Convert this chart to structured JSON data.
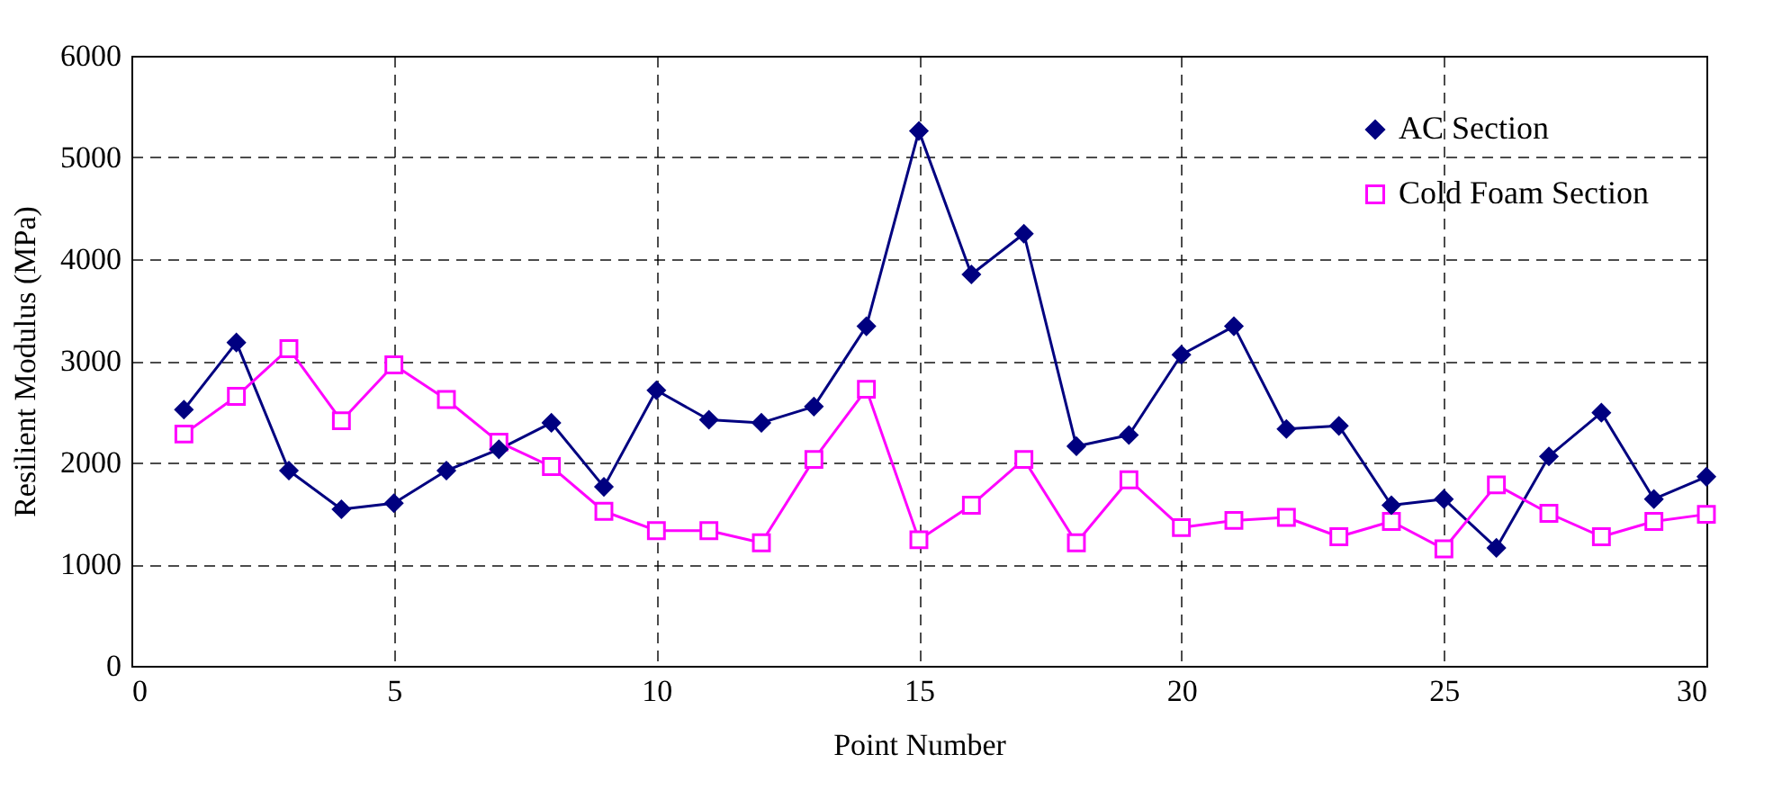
{
  "chart_data": {
    "type": "line",
    "xlabel": "Point Number",
    "ylabel": "Resilient Modulus (MPa)",
    "x": [
      1,
      2,
      3,
      4,
      5,
      6,
      7,
      8,
      9,
      10,
      11,
      12,
      13,
      14,
      15,
      16,
      17,
      18,
      19,
      20,
      21,
      22,
      23,
      24,
      25,
      26,
      27,
      28,
      29,
      30
    ],
    "series": [
      {
        "name": "AC Section",
        "color": "#000080",
        "marker": "diamond",
        "values": [
          2520,
          3180,
          1920,
          1540,
          1600,
          1920,
          2130,
          2390,
          1760,
          2710,
          2420,
          2390,
          2550,
          3340,
          5260,
          3850,
          4250,
          2160,
          2270,
          3060,
          3340,
          2330,
          2360,
          1580,
          1640,
          1160,
          2060,
          2490,
          1640,
          1860
        ]
      },
      {
        "name": "Cold Foam Section",
        "color": "#ff00ff",
        "marker": "square",
        "values": [
          2280,
          2650,
          3120,
          2410,
          2960,
          2620,
          2200,
          1960,
          1520,
          1330,
          1330,
          1210,
          2030,
          2720,
          1240,
          1580,
          2030,
          1210,
          1830,
          1360,
          1430,
          1460,
          1270,
          1420,
          1150,
          1780,
          1500,
          1270,
          1420,
          1490
        ]
      }
    ],
    "xlim": [
      0,
      30
    ],
    "xticks": [
      0,
      5,
      10,
      15,
      20,
      25,
      30
    ],
    "ylim": [
      0,
      6000
    ],
    "yticks": [
      0,
      1000,
      2000,
      3000,
      4000,
      5000,
      6000
    ],
    "grid": true,
    "legend": "top right",
    "line_style": "solid"
  }
}
